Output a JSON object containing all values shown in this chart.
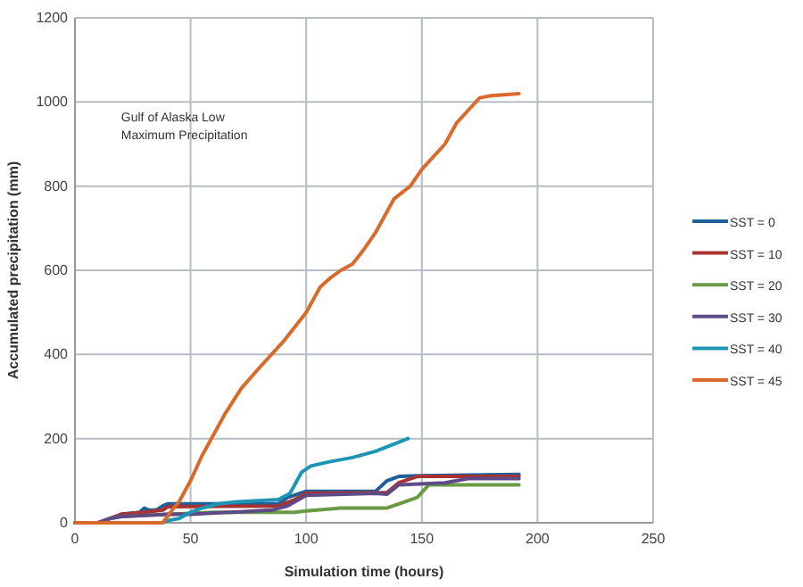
{
  "chart_data": {
    "type": "line",
    "xlabel": "Simulation time (hours)",
    "ylabel": "Accumulated precipitation (mm)",
    "annotations": [
      "Gulf of Alaska Low\nMaximum Precipitation"
    ],
    "xlim": [
      0,
      250
    ],
    "xticks": [
      0,
      50,
      100,
      150,
      200,
      250
    ],
    "ylim": [
      0,
      1200
    ],
    "yticks": [
      0,
      200,
      400,
      600,
      800,
      1000,
      1200
    ],
    "grid": true,
    "legend": "right",
    "line_style": "solid",
    "marker": "none",
    "series": [
      {
        "name": "SST = 0",
        "color": "#1f5f9a",
        "x": [
          15,
          20,
          28,
          30,
          32,
          35,
          38,
          40,
          88,
          92,
          100,
          130,
          135,
          140,
          150,
          192
        ],
        "values": [
          10,
          20,
          25,
          35,
          30,
          30,
          40,
          45,
          45,
          60,
          75,
          75,
          100,
          110,
          112,
          115
        ]
      },
      {
        "name": "SST = 10",
        "color": "#a83232",
        "x": [
          0,
          10,
          15,
          20,
          30,
          38,
          40,
          88,
          95,
          100,
          135,
          140,
          148,
          192
        ],
        "values": [
          0,
          0,
          10,
          20,
          25,
          30,
          38,
          40,
          55,
          70,
          72,
          95,
          110,
          110
        ]
      },
      {
        "name": "SST = 20",
        "color": "#6a9a45",
        "x": [
          15,
          20,
          40,
          60,
          95,
          100,
          115,
          135,
          140,
          148,
          153,
          192
        ],
        "values": [
          10,
          15,
          20,
          25,
          25,
          28,
          35,
          35,
          45,
          60,
          90,
          90
        ]
      },
      {
        "name": "SST = 30",
        "color": "#5e4a86",
        "x": [
          0,
          10,
          15,
          20,
          40,
          50,
          85,
          92,
          100,
          130,
          135,
          140,
          160,
          170,
          192
        ],
        "values": [
          0,
          0,
          10,
          15,
          20,
          20,
          30,
          40,
          65,
          70,
          68,
          90,
          95,
          105,
          105
        ]
      },
      {
        "name": "SST = 40",
        "color": "#1e95b5",
        "x": [
          0,
          38,
          40,
          45,
          50,
          55,
          62,
          70,
          88,
          93,
          98,
          102,
          110,
          120,
          130,
          144
        ],
        "values": [
          0,
          0,
          5,
          10,
          25,
          35,
          45,
          50,
          55,
          70,
          120,
          135,
          145,
          155,
          170,
          200
        ]
      },
      {
        "name": "SST = 45",
        "color": "#d86a2c",
        "x": [
          0,
          38,
          42,
          45,
          50,
          55,
          60,
          65,
          72,
          80,
          90,
          100,
          106,
          110,
          115,
          120,
          125,
          130,
          134,
          138,
          145,
          150,
          155,
          160,
          165,
          170,
          175,
          180,
          192
        ],
        "values": [
          0,
          0,
          30,
          50,
          100,
          160,
          210,
          260,
          320,
          370,
          430,
          500,
          560,
          580,
          600,
          615,
          650,
          690,
          730,
          770,
          800,
          840,
          870,
          900,
          950,
          980,
          1010,
          1015,
          1020
        ]
      }
    ]
  }
}
